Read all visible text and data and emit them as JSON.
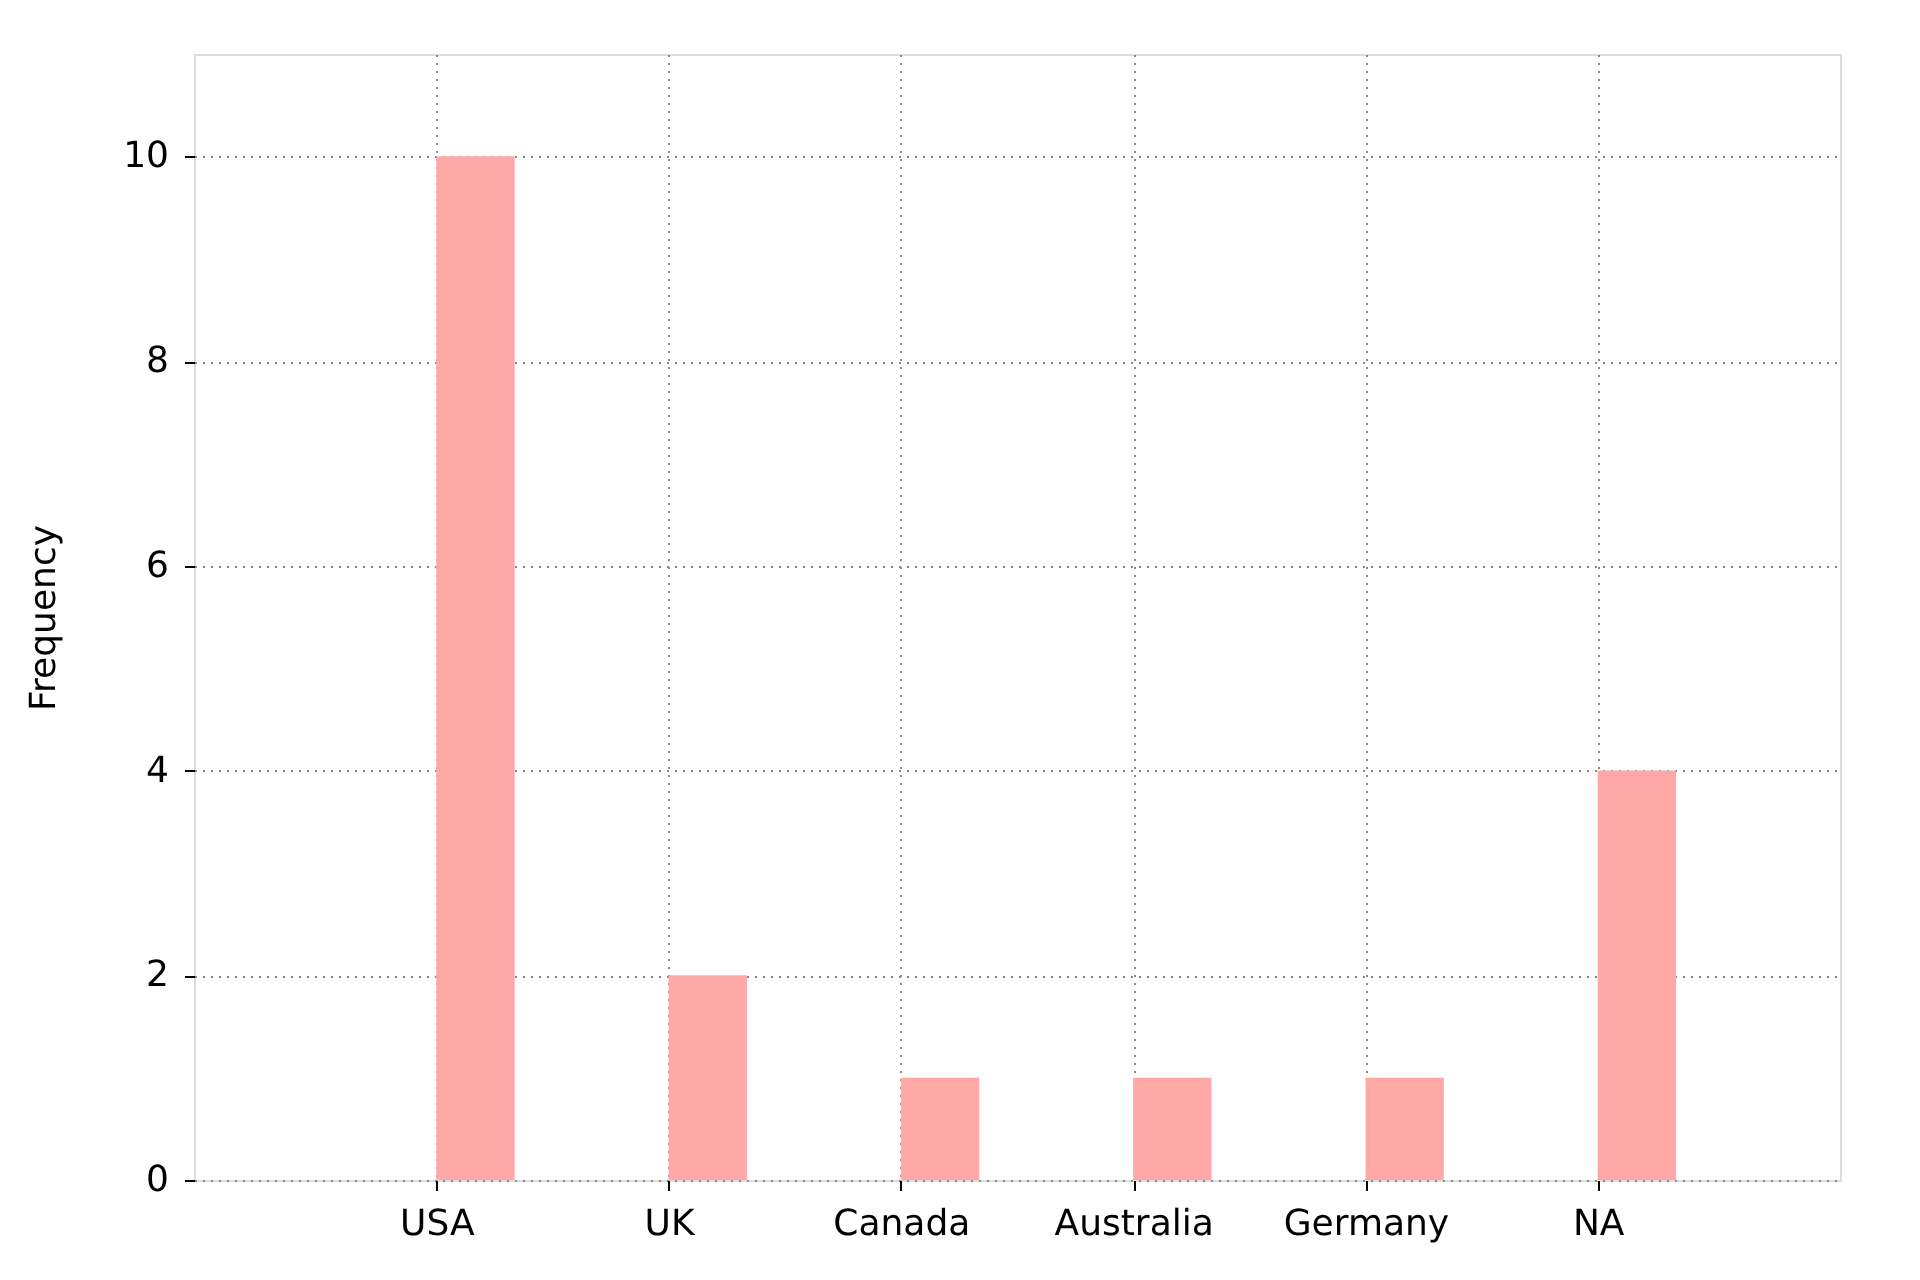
{
  "chart_data": {
    "type": "bar",
    "ylabel": "Frequency",
    "categories": [
      "USA",
      "UK",
      "Canada",
      "Australia",
      "Germany",
      "NA"
    ],
    "values": [
      10,
      2,
      1,
      1,
      1,
      4
    ],
    "color": "#ffa8a8",
    "ylim": [
      0,
      11
    ],
    "yticks": [
      0,
      2,
      4,
      6,
      8,
      10
    ],
    "grid": true
  }
}
